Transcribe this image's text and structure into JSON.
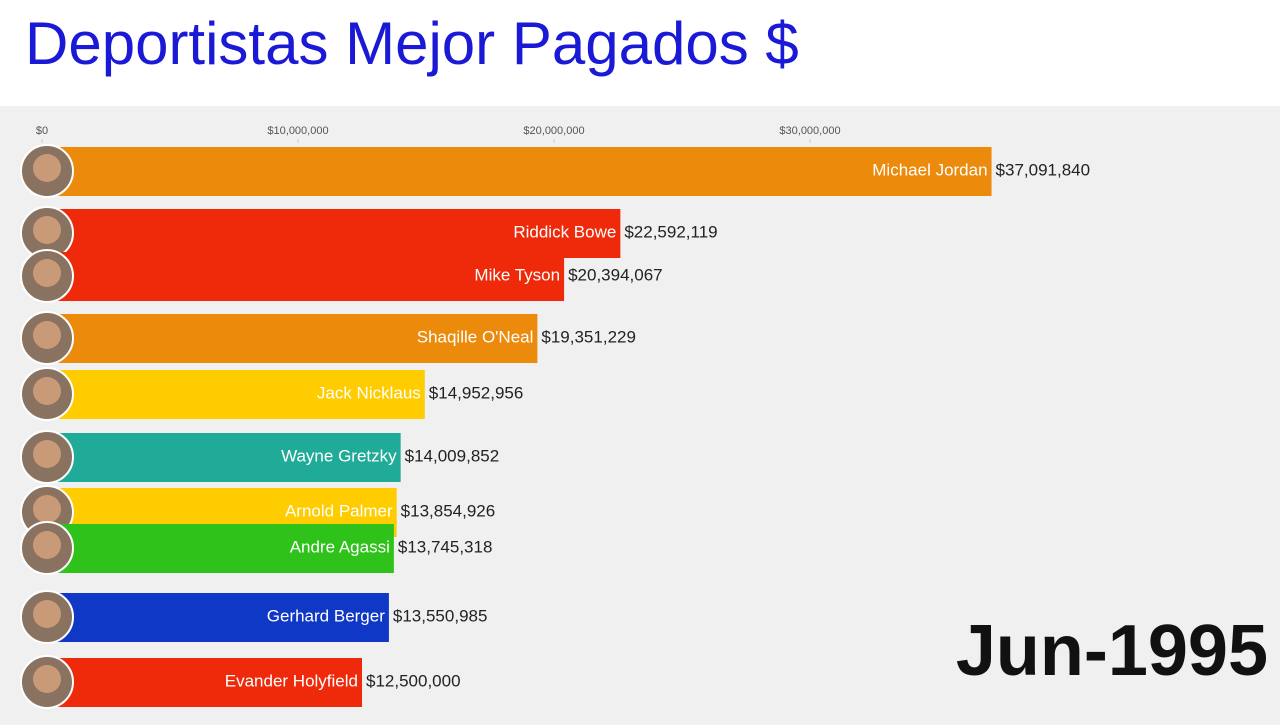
{
  "chart_data": {
    "type": "bar",
    "orientation": "horizontal",
    "title": "Deportistas Mejor Pagados $",
    "date_label": "Jun-1995",
    "categories": [
      "Michael Jordan",
      "Riddick Bowe",
      "Mike Tyson",
      "Shaqille O'Neal",
      "Jack Nicklaus",
      "Wayne Gretzky",
      "Arnold Palmer",
      "Andre Agassi",
      "Gerhard Berger",
      "Evander Holyfield"
    ],
    "values": [
      37091840,
      22592119,
      20394067,
      19351229,
      14952956,
      14009852,
      13854926,
      13745318,
      13550985,
      12500000
    ],
    "value_labels": [
      "$37,091,840",
      "$22,592,119",
      "$20,394,067",
      "$19,351,229",
      "$14,952,956",
      "$14,009,852",
      "$13,854,926",
      "$13,745,318",
      "$13,550,985",
      "$12,500,000"
    ],
    "colors": [
      "#ec8a0c",
      "#ee2a0a",
      "#ee2a0a",
      "#ec8a0c",
      "#ffcc00",
      "#20ab98",
      "#ffcc00",
      "#2ec21a",
      "#1038c6",
      "#ee2a0a"
    ],
    "xlim": [
      0,
      48000000
    ],
    "xticks": [
      {
        "value": 0,
        "label": "$0"
      },
      {
        "value": 10000000,
        "label": "$10,000,000"
      },
      {
        "value": 20000000,
        "label": "$20,000,000"
      },
      {
        "value": 30000000,
        "label": "$30,000,000"
      }
    ]
  }
}
